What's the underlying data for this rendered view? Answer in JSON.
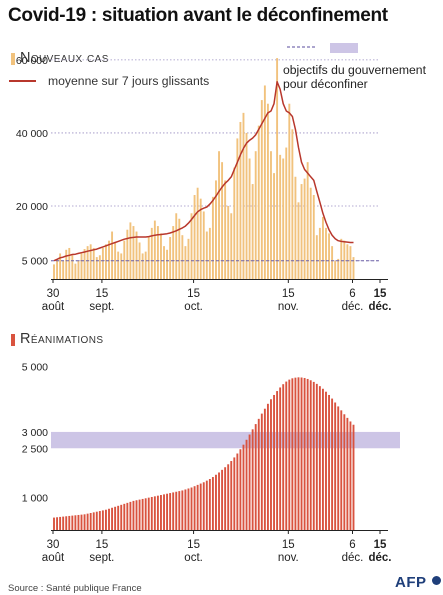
{
  "title": "Covid-19 : situation avant le déconfinement",
  "source": "Source : Santé publique France",
  "logo": "AFP",
  "colors": {
    "cases_bar": "#f1c27d",
    "cases_bar_peak": "#f5cf8f",
    "avg_line": "#b8372c",
    "rea_bar": "#d9533f",
    "target_band": "#cdc5e6",
    "grid": "#9a8fc2",
    "axis": "#222222"
  },
  "legend": {
    "cases_label": "Nouveaux cas",
    "avg_label": "moyenne sur 7 jours glissants",
    "target_label": "objectifs du gouvernement pour déconfiner",
    "target_label_line1": "objectifs du gouvernement",
    "target_label_line2": "pour déconfiner"
  },
  "rea_title": "Réanimations",
  "x_ticks": [
    {
      "day": 0,
      "line1": "30",
      "line2": "août",
      "bold": false
    },
    {
      "day": 16,
      "line1": "15",
      "line2": "sept.",
      "bold": false
    },
    {
      "day": 46,
      "line1": "15",
      "line2": "oct.",
      "bold": false
    },
    {
      "day": 77,
      "line1": "15",
      "line2": "nov.",
      "bold": false
    },
    {
      "day": 98,
      "line1": "6",
      "line2": "déc.",
      "bold": false
    },
    {
      "day": 107,
      "line1": "15",
      "line2": "déc.",
      "bold": true
    }
  ],
  "chart_data": [
    {
      "type": "bar",
      "title": "Nouveaux cas",
      "x_start": "2020-08-30",
      "x_end": "2020-12-06",
      "xlim_end": "2020-12-15",
      "ylim": [
        0,
        66000
      ],
      "yticks": [
        5000,
        20000,
        40000,
        60000
      ],
      "ytick_labels": [
        "5 000",
        "20 000",
        "40 000",
        "60 000"
      ],
      "target": 5000,
      "series": [
        {
          "name": "Nouveaux cas",
          "values": [
            4000,
            5500,
            7000,
            5000,
            8000,
            8500,
            6500,
            4200,
            5000,
            7000,
            8200,
            9000,
            9500,
            8500,
            6000,
            6500,
            8500,
            9500,
            10500,
            13000,
            10000,
            7500,
            7000,
            10500,
            13500,
            15500,
            14500,
            13000,
            10000,
            7000,
            7500,
            11500,
            14000,
            16000,
            14500,
            12500,
            9000,
            8000,
            11500,
            14500,
            18000,
            16500,
            12000,
            9000,
            11000,
            18000,
            23000,
            25000,
            22000,
            18500,
            13000,
            14000,
            22500,
            27000,
            35000,
            32000,
            27000,
            20000,
            18000,
            30500,
            38500,
            43000,
            45500,
            40000,
            33000,
            26000,
            35000,
            42000,
            49000,
            53000,
            48000,
            35000,
            29000,
            60500,
            34000,
            33000,
            36000,
            48000,
            41000,
            28000,
            21000,
            26000,
            27500,
            32000,
            25000,
            23000,
            12000,
            14000,
            17000,
            14000,
            12500,
            9000,
            5000,
            5500,
            11000,
            10500,
            9500,
            9000,
            6000
          ]
        },
        {
          "name": "moyenne sur 7 jours glissants",
          "values": [
            5000,
            5400,
            5800,
            6000,
            6300,
            6500,
            6700,
            6800,
            7000,
            7200,
            7400,
            7600,
            7800,
            8000,
            8200,
            8500,
            8800,
            9100,
            9400,
            9700,
            10000,
            10300,
            10600,
            10900,
            11100,
            11300,
            11400,
            11500,
            11500,
            11500,
            11500,
            11600,
            11800,
            12000,
            12100,
            12200,
            12300,
            12400,
            12600,
            12900,
            13200,
            13600,
            14000,
            14500,
            15300,
            16300,
            17400,
            18400,
            19000,
            19400,
            19700,
            20500,
            21500,
            22700,
            24000,
            25200,
            26200,
            27000,
            28000,
            30000,
            32000,
            34000,
            35800,
            37200,
            38000,
            38600,
            39500,
            41000,
            42500,
            44000,
            45500,
            46000,
            48000,
            54000,
            52000,
            48000,
            46000,
            45500,
            44500,
            41000,
            36000,
            32000,
            30000,
            29000,
            28000,
            27000,
            24000,
            21000,
            18000,
            15500,
            13500,
            12000,
            11000,
            10500,
            10300,
            10200,
            10100,
            10000,
            10000
          ]
        }
      ]
    },
    {
      "type": "bar",
      "title": "Réanimations",
      "x_start": "2020-08-30",
      "x_end": "2020-12-06",
      "xlim_end": "2020-12-15",
      "ylim": [
        0,
        5200
      ],
      "yticks": [
        1000,
        2500,
        3000,
        5000
      ],
      "ytick_labels": [
        "1 000",
        "2 500",
        "3 000",
        "5 000"
      ],
      "target_band": [
        2500,
        3000
      ],
      "series": [
        {
          "name": "Réanimations",
          "values": [
            380,
            390,
            400,
            410,
            420,
            430,
            440,
            450,
            460,
            470,
            480,
            500,
            520,
            540,
            560,
            580,
            600,
            620,
            650,
            680,
            710,
            740,
            770,
            800,
            830,
            860,
            890,
            910,
            930,
            950,
            970,
            990,
            1010,
            1030,
            1050,
            1070,
            1090,
            1110,
            1130,
            1150,
            1170,
            1190,
            1210,
            1240,
            1270,
            1300,
            1340,
            1380,
            1420,
            1460,
            1510,
            1560,
            1620,
            1690,
            1760,
            1840,
            1920,
            2010,
            2110,
            2220,
            2340,
            2470,
            2610,
            2760,
            2920,
            3080,
            3240,
            3400,
            3560,
            3710,
            3860,
            4000,
            4130,
            4250,
            4360,
            4460,
            4540,
            4600,
            4640,
            4660,
            4670,
            4665,
            4650,
            4620,
            4580,
            4530,
            4470,
            4400,
            4320,
            4230,
            4130,
            4020,
            3900,
            3780,
            3660,
            3540,
            3430,
            3320,
            3220
          ]
        }
      ]
    }
  ]
}
